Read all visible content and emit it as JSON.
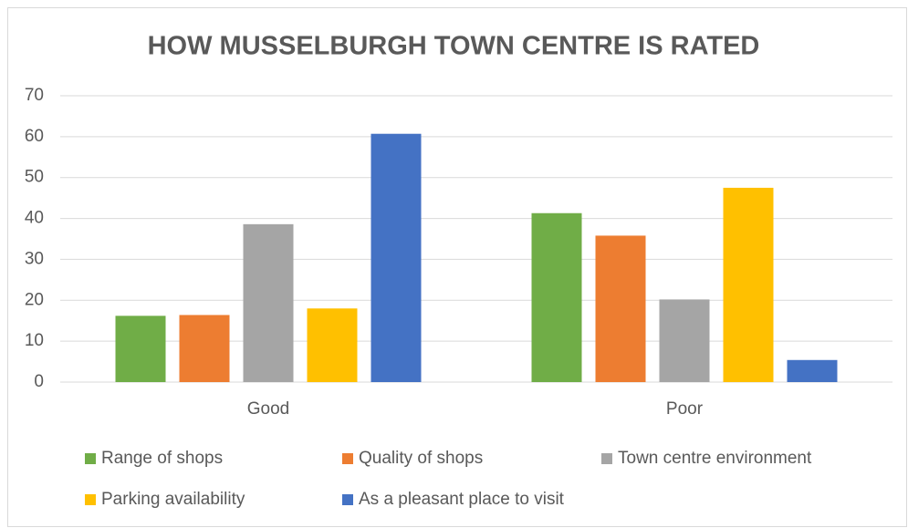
{
  "chart_data": {
    "type": "bar",
    "title": "HOW MUSSELBURGH TOWN CENTRE IS RATED",
    "categories": [
      "Good",
      "Poor"
    ],
    "series": [
      {
        "name": "Range of shops",
        "color": "#70ad47",
        "values": [
          16.2,
          41.3
        ]
      },
      {
        "name": "Quality of shops",
        "color": "#ed7d31",
        "values": [
          16.4,
          35.8
        ]
      },
      {
        "name": "Town centre environment",
        "color": "#a5a5a5",
        "values": [
          38.6,
          20.2
        ]
      },
      {
        "name": "Parking availability",
        "color": "#ffc000",
        "values": [
          18,
          47.5
        ]
      },
      {
        "name": "As a pleasant place to visit",
        "color": "#4472c4",
        "values": [
          60.7,
          5.4
        ]
      }
    ],
    "ylim": [
      0,
      70
    ],
    "yticks": [
      0,
      10,
      20,
      30,
      40,
      50,
      60,
      70
    ],
    "grid": true,
    "legend": "bottom"
  }
}
